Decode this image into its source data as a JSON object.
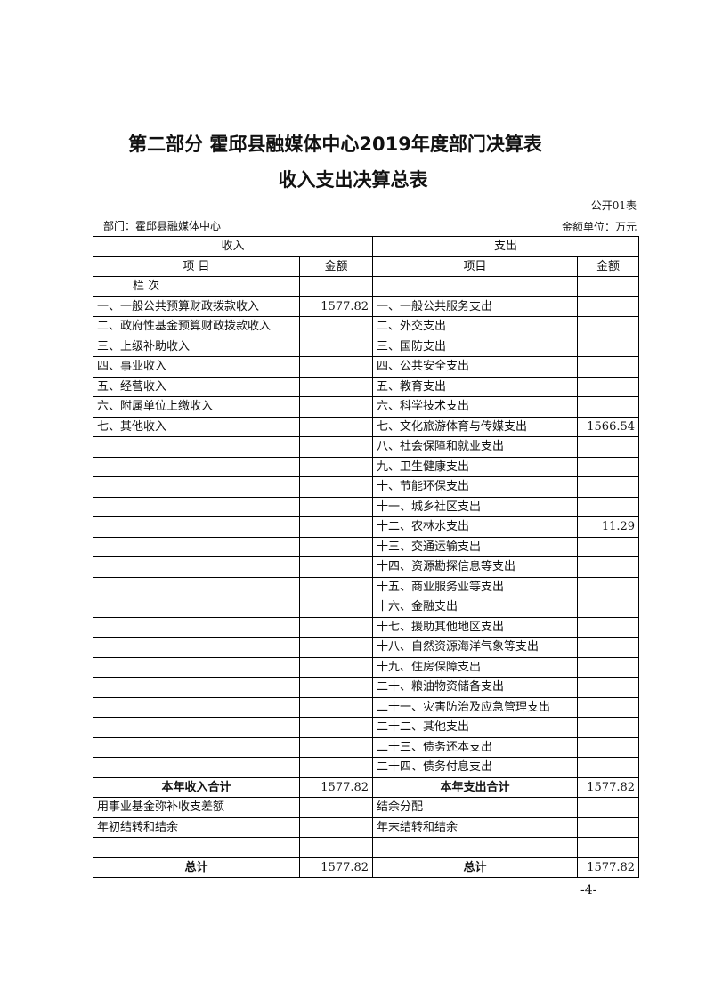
{
  "title": "第二部分  霍邱县融媒体中心2019年度部门决算表",
  "subtitle": "收入支出决算总表",
  "form_no": "公开01表",
  "department": "部门：霍邱县融媒体中心",
  "unit": "金额单位：万元",
  "header": {
    "income": "收入",
    "expenditure": "支出",
    "income_item": "项  目",
    "income_amount": "金额",
    "exp_item": "项目",
    "exp_amount": "金额",
    "column_order": "栏  次"
  },
  "rows": [
    [
      "一、一般公共预算财政拨款收入",
      "1577.82",
      "一、一般公共服务支出",
      ""
    ],
    [
      "二、政府性基金预算财政拨款收入",
      "",
      "二、外交支出",
      ""
    ],
    [
      "三、上级补助收入",
      "",
      "三、国防支出",
      ""
    ],
    [
      "四、事业收入",
      "",
      "四、公共安全支出",
      ""
    ],
    [
      "五、经营收入",
      "",
      "五、教育支出",
      ""
    ],
    [
      "六、附属单位上缴收入",
      "",
      "六、科学技术支出",
      ""
    ],
    [
      "七、其他收入",
      "",
      "七、文化旅游体育与传媒支出",
      "1566.54"
    ],
    [
      "",
      "",
      "八、社会保障和就业支出",
      ""
    ],
    [
      "",
      "",
      "九、卫生健康支出",
      ""
    ],
    [
      "",
      "",
      "十、节能环保支出",
      ""
    ],
    [
      "",
      "",
      "十一、城乡社区支出",
      ""
    ],
    [
      "",
      "",
      "十二、农林水支出",
      "11.29"
    ],
    [
      "",
      "",
      "十三、交通运输支出",
      ""
    ],
    [
      "",
      "",
      "十四、资源勘探信息等支出",
      ""
    ],
    [
      "",
      "",
      "十五、商业服务业等支出",
      ""
    ],
    [
      "",
      "",
      "十六、金融支出",
      ""
    ],
    [
      "",
      "",
      "十七、援助其他地区支出",
      ""
    ],
    [
      "",
      "",
      "十八、自然资源海洋气象等支出",
      ""
    ],
    [
      "",
      "",
      "十九、住房保障支出",
      ""
    ],
    [
      "",
      "",
      "二十、粮油物资储备支出",
      ""
    ],
    [
      "",
      "",
      "二十一、灾害防治及应急管理支出",
      ""
    ],
    [
      "",
      "",
      "二十二、其他支出",
      ""
    ],
    [
      "",
      "",
      "二十三、债务还本支出",
      ""
    ],
    [
      "",
      "",
      "二十四、债务付息支出",
      ""
    ]
  ],
  "year_total": [
    "本年收入合计",
    "1577.82",
    "本年支出合计",
    "1577.82"
  ],
  "extra_rows": [
    [
      "用事业基金弥补收支差额",
      "",
      "结余分配",
      ""
    ],
    [
      "年初结转和结余",
      "",
      "年末结转和结余",
      ""
    ],
    [
      "",
      "",
      "",
      ""
    ]
  ],
  "grand_total": [
    "总计",
    "1577.82",
    "总计",
    "1577.82"
  ],
  "page_number": "-4-"
}
